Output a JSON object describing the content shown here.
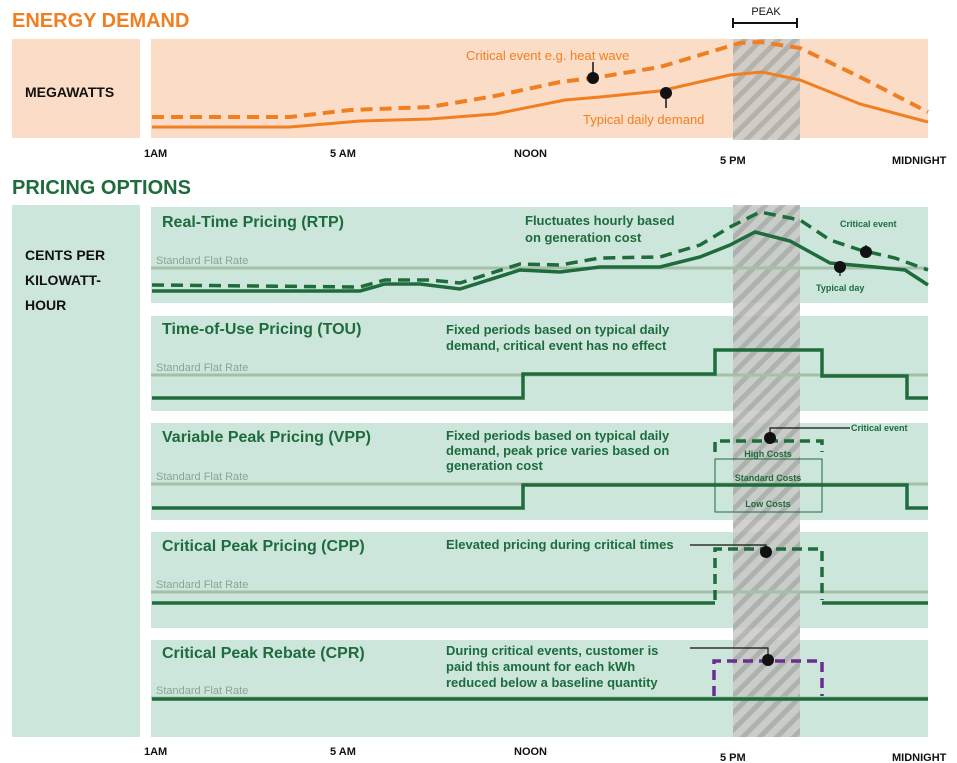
{
  "energy_demand": {
    "title": "ENERGY DEMAND",
    "peak_label": "PEAK",
    "axis_label": "MEGAWATTS",
    "critical_label": "Critical event e.g. heat wave",
    "typical_label": "Typical daily demand"
  },
  "time_axis_top": [
    "1AM",
    "5 AM",
    "NOON",
    "5 PM",
    "MIDNIGHT"
  ],
  "pricing": {
    "title": "PRICING OPTIONS",
    "axis_label": [
      "CENTS PER",
      "KILOWATT-",
      "HOUR"
    ],
    "flat_rate": "Standard Flat Rate",
    "panels": [
      {
        "title": "Real-Time Pricing (RTP)",
        "description": [
          "Fluctuates hourly based",
          "on generation cost"
        ],
        "notes": [
          "Critical event",
          "Typical day"
        ]
      },
      {
        "title": "Time-of-Use Pricing (TOU)",
        "description": [
          "Fixed periods based on typical daily",
          "demand, critical event has no effect"
        ]
      },
      {
        "title": "Variable Peak Pricing (VPP)",
        "description": [
          "Fixed periods based on typical daily",
          "demand, peak price varies based on",
          "generation cost"
        ],
        "notes": [
          "Critical event",
          "High Costs",
          "Standard Costs",
          "Low Costs"
        ]
      },
      {
        "title": "Critical Peak Pricing (CPP)",
        "description": [
          "Elevated pricing during critical times"
        ]
      },
      {
        "title": "Critical Peak Rebate (CPR)",
        "description": [
          "During critical events, customer is",
          "paid this amount for each kWh",
          "reduced below a baseline quantity"
        ]
      }
    ]
  },
  "time_axis_bottom": [
    "1AM",
    "5 AM",
    "NOON",
    "5 PM",
    "MIDNIGHT"
  ]
}
